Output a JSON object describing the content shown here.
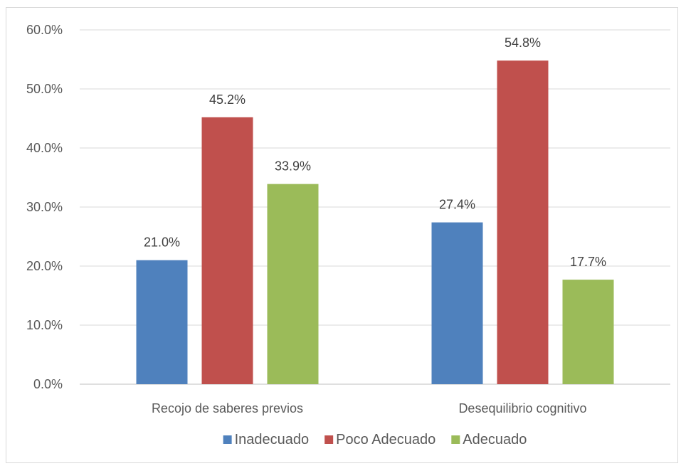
{
  "chart_data": {
    "type": "bar",
    "title": "",
    "xlabel": "",
    "ylabel": "",
    "categories": [
      "Recojo de saberes previos",
      "Desequilibrio cognitivo"
    ],
    "series": [
      {
        "name": "Inadecuado",
        "color": "#4f81bd",
        "values": [
          21.0,
          27.4
        ],
        "labels": [
          "21.0%",
          "27.4%"
        ]
      },
      {
        "name": "Poco Adecuado",
        "color": "#c0504d",
        "values": [
          45.2,
          54.8
        ],
        "labels": [
          "45.2%",
          "54.8%"
        ]
      },
      {
        "name": "Adecuado",
        "color": "#9bbb59",
        "values": [
          33.9,
          17.7
        ],
        "labels": [
          "33.9%",
          "17.7%"
        ]
      }
    ],
    "ylim": [
      0,
      60
    ],
    "yticks": [
      0,
      10,
      20,
      30,
      40,
      50,
      60
    ],
    "ytick_labels": [
      "0.0%",
      "10.0%",
      "20.0%",
      "30.0%",
      "40.0%",
      "50.0%",
      "60.0%"
    ],
    "grid": true,
    "legend_position": "bottom"
  }
}
